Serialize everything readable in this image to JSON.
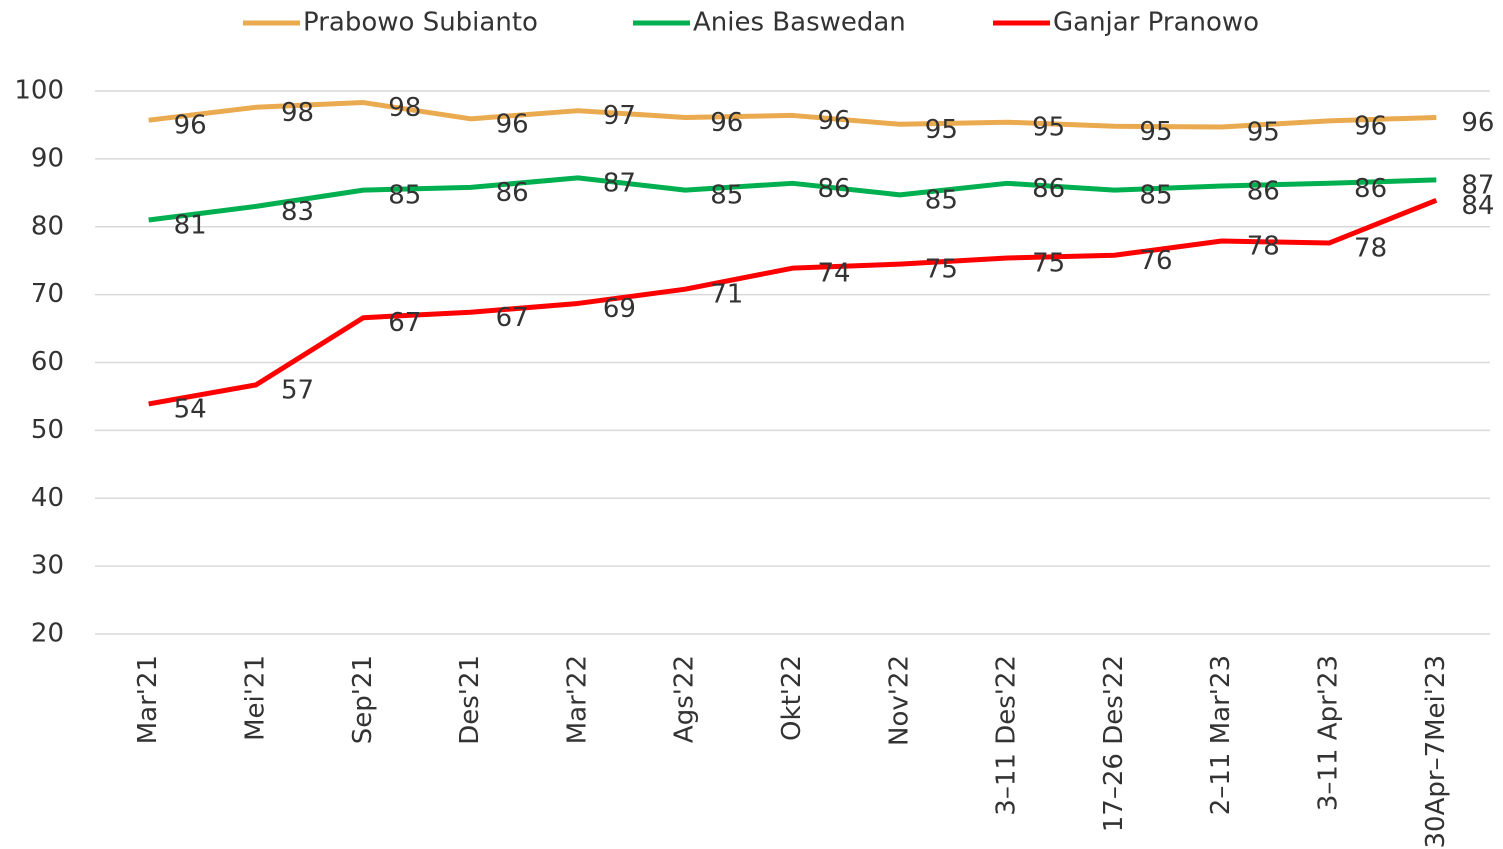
{
  "chart_data": {
    "type": "line",
    "categories": [
      "Mar'21",
      "Mei'21",
      "Sep'21",
      "Des'21",
      "Mar'22",
      "Ags'22",
      "Okt'22",
      "Nov'22",
      "3–11 Des'22",
      "17–26 Des'22",
      "2–11 Mar'23",
      "3–11 Apr'23",
      "30Apr–7Mei'23"
    ],
    "series": [
      {
        "name": "Prabowo Subianto",
        "color": "#EAAA50",
        "values": [
          95.7,
          97.6,
          98.3,
          95.9,
          97.1,
          96.1,
          96.4,
          95.1,
          95.4,
          94.8,
          94.7,
          95.6,
          96.1
        ],
        "value_labels": [
          "96",
          "98",
          "98",
          "96",
          "97",
          "96",
          "96",
          "95",
          "95",
          "95",
          "95",
          "96",
          "96"
        ]
      },
      {
        "name": "Anies Baswedan",
        "color": "#00B050",
        "values": [
          81.0,
          83.0,
          85.4,
          85.8,
          87.2,
          85.4,
          86.4,
          84.7,
          86.4,
          85.4,
          86.0,
          86.4,
          86.9
        ],
        "value_labels": [
          "81",
          "83",
          "85",
          "86",
          "87",
          "85",
          "86",
          "85",
          "86",
          "85",
          "86",
          "86",
          "87"
        ]
      },
      {
        "name": "Ganjar Pranowo",
        "color": "#FF0000",
        "values": [
          53.9,
          56.7,
          66.6,
          67.4,
          68.7,
          70.8,
          73.9,
          74.5,
          75.4,
          75.8,
          77.9,
          77.6,
          83.9
        ],
        "value_labels": [
          "54",
          "57",
          "67",
          "67",
          "69",
          "71",
          "74",
          "75",
          "75",
          "76",
          "78",
          "78",
          "84"
        ]
      }
    ],
    "ylim": [
      20,
      100
    ],
    "yticks": [
      20,
      30,
      40,
      50,
      60,
      70,
      80,
      90,
      100
    ],
    "grid": true,
    "legend": "top"
  }
}
